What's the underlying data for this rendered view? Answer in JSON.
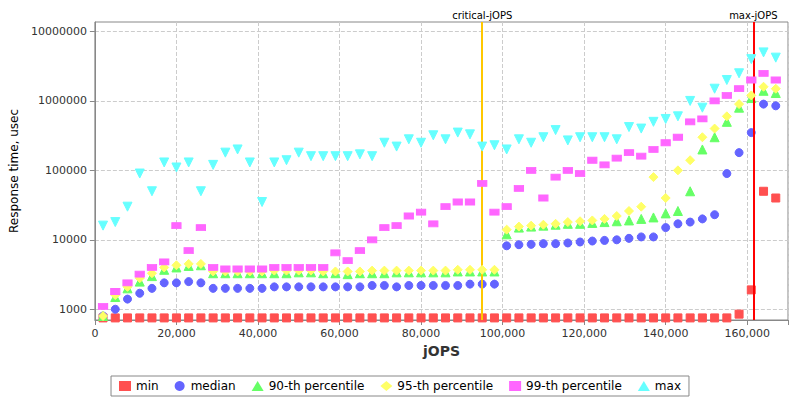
{
  "chart_data": {
    "type": "scatter",
    "xlabel": "jOPS",
    "ylabel": "Response time, usec",
    "log": "y",
    "grid": true,
    "legend": "bottom",
    "xlim": [
      0,
      170000
    ],
    "xticks": [
      0,
      {
        "value": 20000,
        "label": "20,000"
      },
      {
        "value": 40000,
        "label": "40,000"
      },
      {
        "value": 60000,
        "label": "60,000"
      },
      {
        "value": 80000,
        "label": "80,000"
      },
      {
        "value": 100000,
        "label": "100,000"
      },
      {
        "value": 120000,
        "label": "120,000"
      },
      {
        "value": 140000,
        "label": "140,000"
      },
      {
        "value": 160000,
        "label": "160,000"
      }
    ],
    "ylim": [
      700,
      13700000
    ],
    "yticks": [
      1000,
      10000,
      100000,
      1000000,
      10000000
    ],
    "annotations": [
      {
        "label": "critical-jOPS",
        "x": 95000,
        "color": "#ffc800"
      },
      {
        "label": "max-jOPS",
        "x": 161500,
        "color": "#ff0000"
      }
    ],
    "x": [
      2000,
      5000,
      8000,
      11000,
      14000,
      17000,
      20000,
      23000,
      26000,
      29000,
      32000,
      35000,
      38000,
      41000,
      44000,
      47000,
      50000,
      53000,
      56000,
      59000,
      62000,
      65000,
      68000,
      71000,
      74000,
      77000,
      80000,
      83000,
      86000,
      89000,
      92000,
      95000,
      98000,
      101000,
      104000,
      107000,
      110000,
      113000,
      116000,
      119000,
      122000,
      125000,
      128000,
      131000,
      134000,
      137000,
      140000,
      143000,
      146000,
      149000,
      152000,
      155000,
      158000,
      161000,
      164000,
      167000
    ],
    "series": [
      {
        "name": "min",
        "color": "#ff5050",
        "marker": "square",
        "values": [
          750,
          750,
          750,
          750,
          750,
          750,
          750,
          750,
          750,
          750,
          750,
          750,
          750,
          750,
          750,
          750,
          750,
          750,
          750,
          750,
          750,
          750,
          750,
          750,
          750,
          750,
          750,
          750,
          750,
          750,
          750,
          750,
          750,
          750,
          750,
          750,
          750,
          750,
          750,
          750,
          750,
          750,
          750,
          750,
          750,
          750,
          750,
          750,
          750,
          750,
          750,
          750,
          850,
          1900,
          50000,
          40000
        ]
      },
      {
        "name": "median",
        "color": "#6464ff",
        "marker": "circle",
        "values": [
          800,
          1000,
          1400,
          1700,
          2000,
          2400,
          2400,
          2500,
          2400,
          2000,
          2000,
          2000,
          2000,
          2000,
          2100,
          2100,
          2100,
          2100,
          2100,
          2100,
          2100,
          2100,
          2200,
          2200,
          2100,
          2200,
          2200,
          2200,
          2200,
          2200,
          2300,
          2300,
          2300,
          8200,
          8500,
          8600,
          8800,
          8800,
          9000,
          9300,
          9600,
          9800,
          10000,
          10500,
          11000,
          11000,
          15000,
          17000,
          18000,
          20000,
          23000,
          90000,
          180000,
          350000,
          900000,
          850000
        ]
      },
      {
        "name": "90-th percentile",
        "color": "#66ff66",
        "marker": "triangle",
        "values": [
          800,
          1500,
          2000,
          2500,
          3000,
          3700,
          4000,
          4200,
          4300,
          3300,
          3300,
          3300,
          3300,
          3300,
          3300,
          3300,
          3400,
          3400,
          3300,
          3300,
          3200,
          3300,
          3300,
          3300,
          3400,
          3400,
          3400,
          3400,
          3400,
          3500,
          3500,
          3500,
          3500,
          12000,
          15000,
          15500,
          16000,
          16500,
          17000,
          17000,
          17500,
          18000,
          18500,
          19000,
          20000,
          21000,
          24000,
          26000,
          50000,
          200000,
          300000,
          500000,
          800000,
          1100000,
          1400000,
          1300000
        ]
      },
      {
        "name": "95-th percentile",
        "color": "#ffff66",
        "marker": "diamond",
        "values": [
          800,
          1600,
          2100,
          2800,
          3300,
          4000,
          4300,
          4500,
          4500,
          3500,
          3500,
          3500,
          3500,
          3500,
          3600,
          3600,
          3600,
          3600,
          3500,
          3500,
          3500,
          3500,
          3600,
          3600,
          3600,
          3600,
          3600,
          3600,
          3600,
          3700,
          3700,
          3700,
          3700,
          14000,
          15500,
          16000,
          16500,
          17000,
          18000,
          18500,
          19000,
          20000,
          22000,
          26000,
          30000,
          80000,
          40000,
          100000,
          140000,
          300000,
          400000,
          600000,
          900000,
          1200000,
          1600000,
          1500000
        ]
      },
      {
        "name": "99-th percentile",
        "color": "#ff66ff",
        "marker": "rect",
        "values": [
          1100,
          1800,
          2400,
          3200,
          4000,
          4800,
          16000,
          7000,
          15000,
          4000,
          3800,
          3800,
          3800,
          3800,
          4000,
          4000,
          4000,
          4000,
          4000,
          6500,
          5000,
          7000,
          10000,
          15000,
          16000,
          22000,
          25000,
          17000,
          30000,
          35000,
          35000,
          65000,
          25000,
          30000,
          55000,
          100000,
          40000,
          80000,
          100000,
          90000,
          140000,
          120000,
          150000,
          180000,
          160000,
          200000,
          250000,
          300000,
          500000,
          550000,
          1000000,
          1200000,
          1500000,
          2000000,
          2500000,
          2000000
        ]
      },
      {
        "name": "max",
        "color": "#66ffff",
        "marker": "triangle-down",
        "values": [
          16000,
          18000,
          30000,
          90000,
          50000,
          130000,
          110000,
          130000,
          50000,
          120000,
          180000,
          200000,
          130000,
          35000,
          130000,
          140000,
          180000,
          160000,
          160000,
          160000,
          160000,
          170000,
          160000,
          250000,
          220000,
          280000,
          250000,
          320000,
          280000,
          350000,
          330000,
          220000,
          230000,
          200000,
          280000,
          250000,
          300000,
          380000,
          270000,
          300000,
          300000,
          300000,
          280000,
          420000,
          400000,
          500000,
          550000,
          600000,
          1000000,
          800000,
          1500000,
          2000000,
          2500000,
          4000000,
          5000000,
          4200000
        ]
      }
    ]
  }
}
